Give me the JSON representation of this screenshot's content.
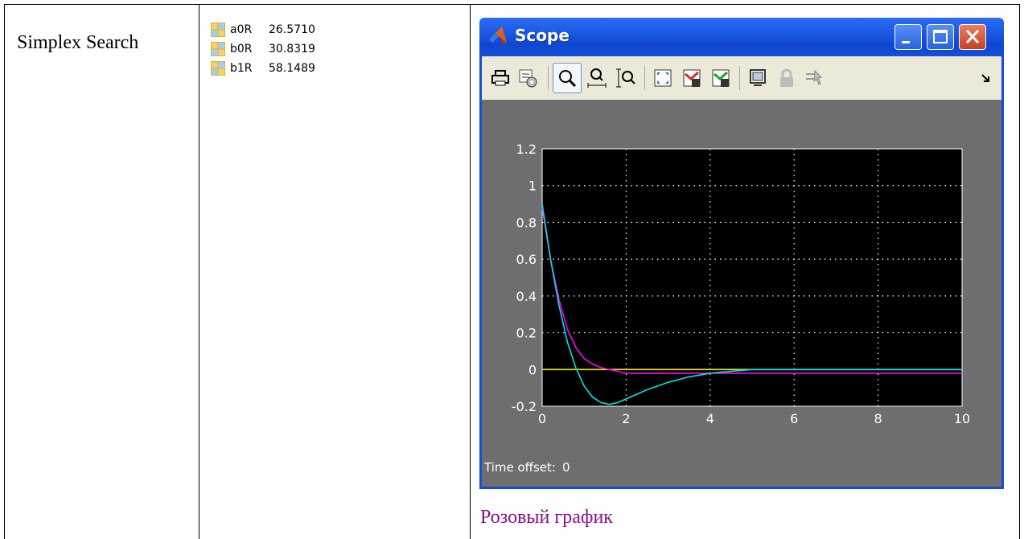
{
  "table": {
    "method_label": "Simplex Search",
    "caption": "Розовый график"
  },
  "workspace": [
    {
      "name": "a0R",
      "value": "26.5710"
    },
    {
      "name": "b0R",
      "value": "30.8319"
    },
    {
      "name": "b1R",
      "value": "58.1489"
    }
  ],
  "scope": {
    "title": "Scope",
    "time_offset_label": "Time offset:",
    "time_offset_value": "0",
    "toolbar_icons": [
      "print-icon",
      "parameters-icon",
      "zoom-icon",
      "zoom-x-icon",
      "zoom-y-icon",
      "autoscale-icon",
      "save-axes-icon",
      "restore-axes-icon",
      "floating-scope-icon",
      "lock-icon",
      "signal-selection-icon"
    ],
    "colors": {
      "plot_bg": "#000000",
      "frame_bg": "#6e6e6e",
      "grid": "#ffffff",
      "text": "#ffffff"
    }
  },
  "chart_data": {
    "type": "line",
    "title": "",
    "xlabel": "",
    "ylabel": "",
    "xlim": [
      0,
      10
    ],
    "ylim": [
      -0.2,
      1.2
    ],
    "xticks": [
      0,
      2,
      4,
      6,
      8,
      10
    ],
    "yticks": [
      -0.2,
      0,
      0.2,
      0.4,
      0.6,
      0.8,
      1,
      1.2
    ],
    "grid": true,
    "series": [
      {
        "color": "#ff00ff",
        "x": [
          0,
          0.2,
          0.4,
          0.6,
          0.8,
          1.0,
          1.2,
          1.4,
          1.6,
          2.0,
          3.0,
          4.0,
          6.0,
          8.0,
          10.0
        ],
        "y": [
          0.88,
          0.6,
          0.38,
          0.22,
          0.12,
          0.06,
          0.03,
          0.01,
          0.0,
          -0.02,
          -0.02,
          -0.02,
          -0.02,
          -0.02,
          -0.02
        ]
      },
      {
        "color": "#00e5e5",
        "x": [
          0,
          0.2,
          0.4,
          0.6,
          0.8,
          1.0,
          1.2,
          1.4,
          1.6,
          1.8,
          2.0,
          2.5,
          3.0,
          3.5,
          4.0,
          4.5,
          5.0,
          6.0,
          8.0,
          10.0
        ],
        "y": [
          0.9,
          0.6,
          0.35,
          0.15,
          0.01,
          -0.09,
          -0.15,
          -0.18,
          -0.19,
          -0.18,
          -0.16,
          -0.11,
          -0.07,
          -0.04,
          -0.02,
          -0.01,
          0.0,
          0.0,
          0.0,
          0.0
        ]
      },
      {
        "color": "#e6e600",
        "x": [
          0,
          10
        ],
        "y": [
          0,
          0
        ]
      }
    ]
  }
}
